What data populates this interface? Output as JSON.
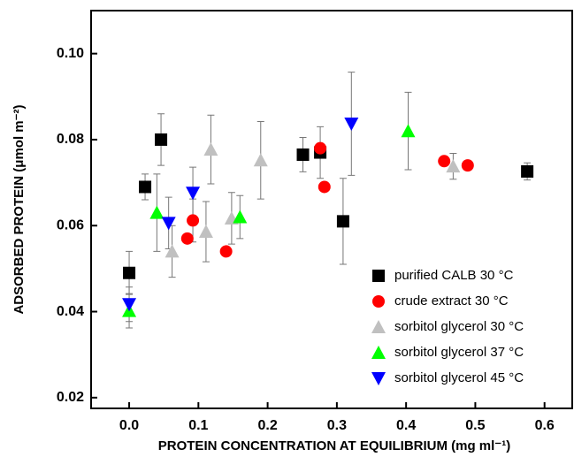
{
  "chart_data": {
    "type": "scatter",
    "xlabel": "PROTEIN CONCENTRATION AT EQUILIBRIUM (mg ml⁻¹)",
    "ylabel": "ADSORBED PROTEIN (μmol m⁻²)",
    "xlim": [
      -0.055,
      0.64
    ],
    "ylim": [
      0.0175,
      0.11
    ],
    "xticks": [
      {
        "value": 0,
        "label": "0.0"
      },
      0.1,
      0.2,
      0.3,
      0.4,
      0.5,
      0.6
    ],
    "yticks": [
      0.02,
      0.04,
      0.06,
      0.08,
      {
        "value": 0.1,
        "label": "0.10"
      }
    ],
    "legend": "lower right",
    "series": [
      {
        "name": "purified CALB 30 °C",
        "color": "#000000",
        "marker": "square",
        "x": [
          0.0,
          0.023,
          0.046,
          0.251,
          0.276,
          0.309,
          0.575
        ],
        "values": [
          0.049,
          0.069,
          0.08,
          0.0765,
          0.077,
          0.061,
          0.0726
        ],
        "errors": [
          0.005,
          0.003,
          0.006,
          0.004,
          0.006,
          0.01,
          0.002
        ]
      },
      {
        "name": "crude extract 30 °C",
        "color": "#ff0000",
        "marker": "circle",
        "x": [
          0.084,
          0.092,
          0.14,
          0.276,
          0.282,
          0.455,
          0.489
        ],
        "values": [
          0.057,
          0.0612,
          0.054,
          0.078,
          0.069,
          0.075,
          0.074
        ],
        "errors": [
          null,
          0.005,
          null,
          null,
          null,
          null,
          null
        ]
      },
      {
        "name": "sorbitol glycerol 30 °C",
        "color": "#c0c0c0",
        "marker": "triangle-up",
        "x": [
          0.062,
          0.111,
          0.118,
          0.148,
          0.19,
          0.468
        ],
        "values": [
          0.054,
          0.0586,
          0.0777,
          0.0617,
          0.0752,
          0.0738
        ],
        "errors": [
          0.006,
          0.007,
          0.008,
          0.006,
          0.009,
          0.003
        ]
      },
      {
        "name": "sorbitol glycerol 37 °C",
        "color": "#00ff00",
        "marker": "triangle-up",
        "x": [
          0.0,
          0.04,
          0.16,
          0.403
        ],
        "values": [
          0.0402,
          0.063,
          0.062,
          0.082
        ],
        "errors": [
          0.004,
          0.009,
          0.005,
          0.009
        ]
      },
      {
        "name": "sorbitol glycerol 45 °C",
        "color": "#0000ff",
        "marker": "triangle-down",
        "x": [
          0.0,
          0.057,
          0.092,
          0.321
        ],
        "values": [
          0.0417,
          0.0606,
          0.0676,
          0.0837
        ],
        "errors": [
          0.004,
          0.006,
          0.006,
          0.012
        ]
      }
    ]
  }
}
